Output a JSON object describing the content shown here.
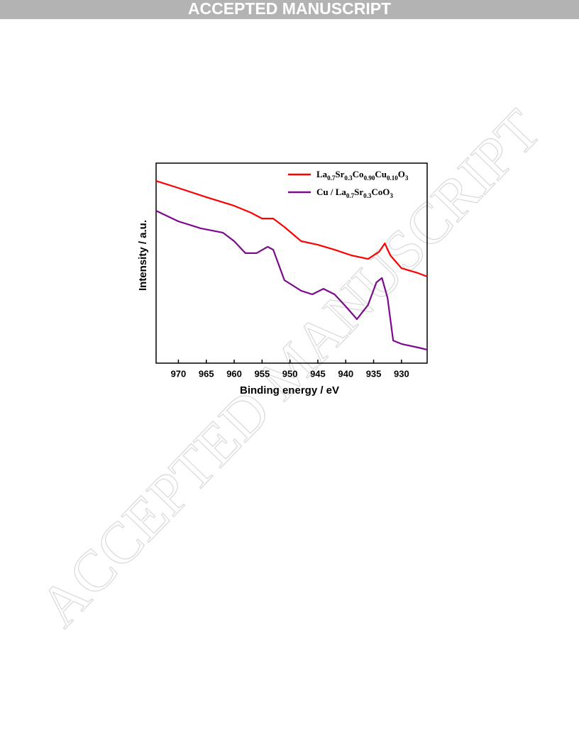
{
  "header": "ACCEPTED MANUSCRIPT",
  "watermark": "ACCEPTED MANUSCRIPT",
  "chart_data": {
    "type": "line",
    "xlabel": "Binding energy / eV",
    "ylabel": "Intensity / a.u.",
    "xlim": [
      974,
      925.4
    ],
    "ylim": [
      0,
      100
    ],
    "xticks": [
      970,
      965,
      960,
      955,
      950,
      945,
      940,
      935,
      930
    ],
    "legend": "upper right",
    "series": [
      {
        "name": "La0.7Sr0.3Co0.90Cu0.10O3",
        "color": "#ff0000",
        "x": [
          974,
          970,
          965,
          960,
          957,
          955,
          953,
          951,
          948,
          945,
          942,
          939,
          936,
          934,
          933,
          932,
          930,
          927,
          925.4
        ],
        "values": [
          91.1,
          87.6,
          83.0,
          78.7,
          75.2,
          72.3,
          72.3,
          68.1,
          61.0,
          59.2,
          56.7,
          53.9,
          52.1,
          55.7,
          59.9,
          53.9,
          47.5,
          45.0,
          43.3
        ]
      },
      {
        "name": "Cu / La0.7Sr0.3CoO3",
        "color": "#7b0a8c",
        "x": [
          974,
          970,
          966,
          962,
          960,
          958,
          956,
          954,
          953,
          951,
          948,
          946,
          944,
          942,
          940,
          938,
          936,
          934.5,
          933.5,
          932.5,
          931.5,
          930,
          927,
          925.4
        ],
        "values": [
          76.2,
          70.9,
          67.4,
          65.2,
          61.0,
          55.0,
          55.0,
          58.2,
          56.7,
          41.5,
          36.2,
          34.4,
          37.2,
          34.4,
          28.4,
          22.0,
          29.1,
          40.4,
          42.6,
          32.6,
          11.3,
          9.6,
          7.8,
          6.7
        ]
      }
    ]
  }
}
